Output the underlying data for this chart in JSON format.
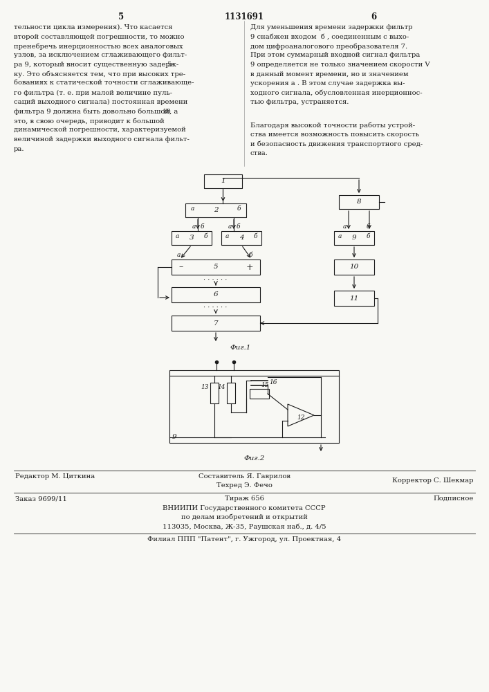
{
  "page_number_left": "5",
  "page_number_center": "1131691",
  "page_number_right": "6",
  "bg_color": "#f8f8f4",
  "left_column_text": [
    "тельности цикла измерения). Что касается",
    "второй составляющей погрешности, то можно",
    "пренебречь инерционностью всех аналоговых",
    "узлов, за исключением сглаживающего фильт-",
    "ра 9, который вносит существенную задерж-",
    "ку. Это объясняется тем, что при высоких тре-",
    "бованиях к статической точности сглаживающе-",
    "го фильтра (т. е. при малой величине пуль-",
    "саций выходного сигнала) постоянная времени",
    "фильтра 9 должна быть довольно большой, а",
    "это, в свою очередь, приводит к большой",
    "динамической погрешности, характеризуемой",
    "величиной задержки выходного сигнала фильт-",
    "ра."
  ],
  "right_col1": [
    "Для уменьшения времени задержки фильтр",
    "9 снабжен входом  б , соединенным с выхо-",
    "дом цифроаналогового преобразователя 7.",
    "При этом суммарный входной сигнал фильтра",
    "9 определяется не только значением скорости V",
    "в данный момент времени, но и значением",
    "ускорения а . В этом случае задержка вы-",
    "ходного сигнала, обусловленная инерционнос-",
    "тью фильтра, устраняется."
  ],
  "right_col2": [
    "Благодаря высокой точности работы устрой-",
    "ства имеется возможность повысить скорость",
    "и безопасность движения транспортного сред-",
    "ства."
  ],
  "fig1_label": "Фиг.1",
  "fig2_label": "Фиг.2",
  "footer_editor": "Редактор М. Циткина",
  "footer_comp_top": "Составитель Я. Гаврилов",
  "footer_comp_bot": "Техред Э. Фечо",
  "footer_corr": "Корректор С. Шекмар",
  "footer_order": "Заказ 9699/11",
  "footer_circ": "Тираж 656",
  "footer_sub": "Подписное",
  "footer_org1": "ВНИИПИ Государственного комитета СССР",
  "footer_org2": "по делам изобретений и открытий",
  "footer_org3": "113035, Москва, Ж-35, Раушская наб., д. 4/5",
  "footer_branch": "Филиал ППП \"Патент\", г. Ужгород, ул. Проектная, 4"
}
